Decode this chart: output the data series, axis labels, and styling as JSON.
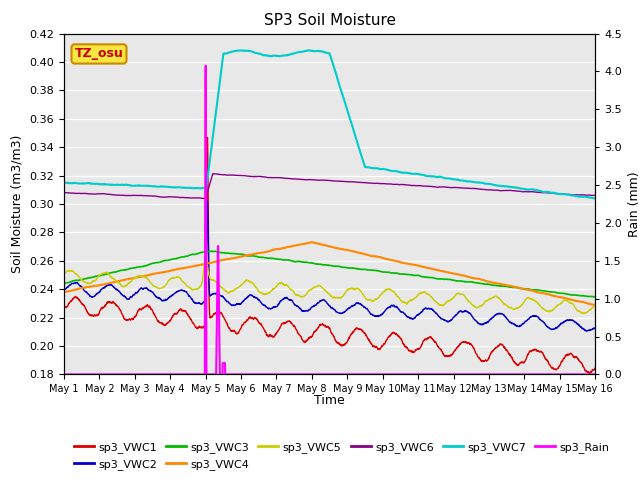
{
  "title": "SP3 Soil Moisture",
  "xlabel": "Time",
  "ylabel_left": "Soil Moisture (m3/m3)",
  "ylabel_right": "Rain (mm)",
  "ylim_left": [
    0.18,
    0.42
  ],
  "ylim_right": [
    0.0,
    4.5
  ],
  "background_color": "#e8e8e8",
  "annotation_text": "TZ_osu",
  "annotation_bg": "#f5e642",
  "annotation_border": "#cc8800",
  "series_colors": {
    "sp3_VWC1": "#dd0000",
    "sp3_VWC2": "#0000cc",
    "sp3_VWC3": "#00bb00",
    "sp3_VWC4": "#ff8800",
    "sp3_VWC5": "#cccc00",
    "sp3_VWC6": "#880088",
    "sp3_VWC7": "#00cccc",
    "sp3_Rain": "#ff00ff"
  },
  "n_points": 3000,
  "xtick_labels": [
    "May 1",
    "May 2",
    "May 3",
    "May 4",
    "May 5",
    "May 6",
    "May 7",
    "May 8",
    "May 9",
    "May 10",
    "May 11",
    "May 12",
    "May 13",
    "May 14",
    "May 15",
    "May 16"
  ],
  "yticks_left": [
    0.18,
    0.2,
    0.22,
    0.24,
    0.26,
    0.28,
    0.3,
    0.32,
    0.34,
    0.36,
    0.38,
    0.4,
    0.42
  ],
  "yticks_right": [
    0.0,
    0.5,
    1.0,
    1.5,
    2.0,
    2.5,
    3.0,
    3.5,
    4.0,
    4.5
  ]
}
